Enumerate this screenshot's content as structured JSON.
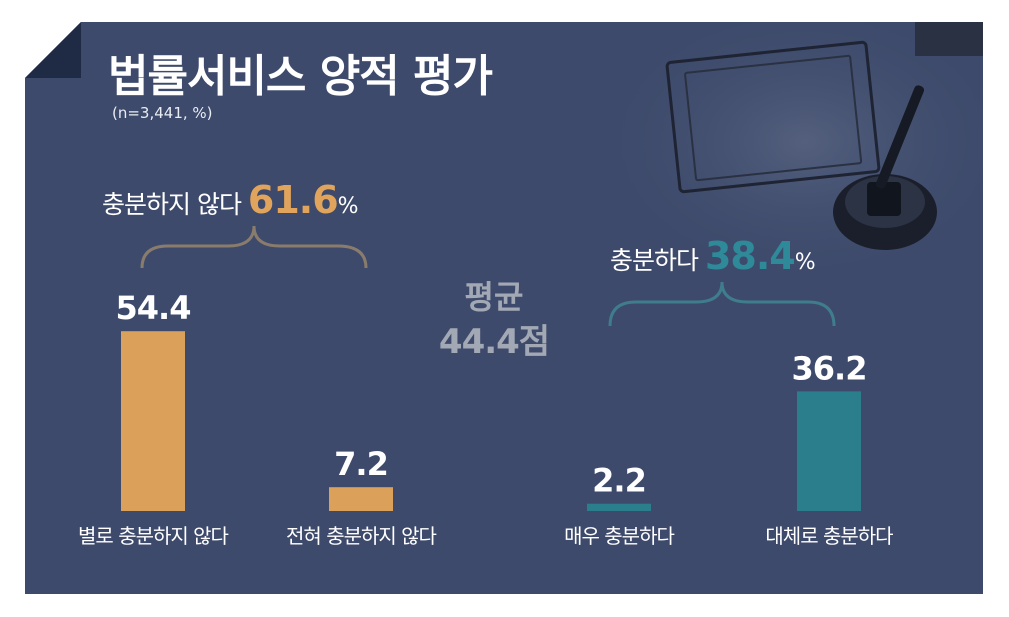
{
  "header": {
    "title": "법률서비스 양적 평가",
    "subtitle": "(n=3,441, %)"
  },
  "groups": {
    "negative": {
      "label": "충분하지 않다",
      "value": "61.6",
      "unit": "%"
    },
    "positive": {
      "label": "충분하다",
      "value": "38.4",
      "unit": "%"
    }
  },
  "average": {
    "label": "평균",
    "value": "44.4점"
  },
  "colors": {
    "background": "#3d4a6b",
    "negative": "#dba15b",
    "positive": "#2b7e8c"
  },
  "chart_data": {
    "type": "bar",
    "categories": [
      "별로 충분하지 않다",
      "전혀 충분하지 않다",
      "매우 충분하다",
      "대체로 충분하다"
    ],
    "values": [
      54.4,
      7.2,
      2.2,
      36.2
    ],
    "value_labels": [
      "54.4",
      "7.2",
      "2.2",
      "36.2"
    ],
    "bar_colors": [
      "#dba15b",
      "#dba15b",
      "#2b7e8c",
      "#2b7e8c"
    ],
    "title": "법률서비스 양적 평가",
    "ylim": [
      0,
      60
    ],
    "grid": false,
    "legend": "none"
  }
}
